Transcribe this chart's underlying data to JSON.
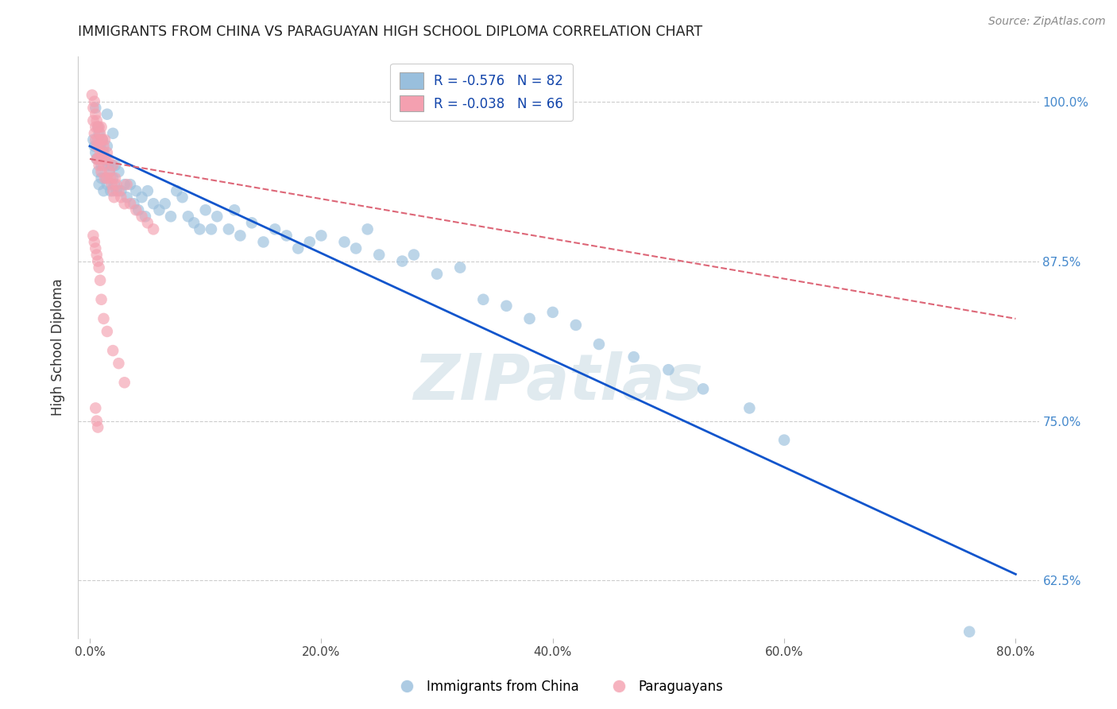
{
  "title": "IMMIGRANTS FROM CHINA VS PARAGUAYAN HIGH SCHOOL DIPLOMA CORRELATION CHART",
  "source": "Source: ZipAtlas.com",
  "xlabel_vals": [
    0.0,
    20.0,
    40.0,
    60.0,
    80.0
  ],
  "ylabel_vals": [
    62.5,
    75.0,
    87.5,
    100.0
  ],
  "xlim": [
    -1.0,
    82.0
  ],
  "ylim": [
    58.0,
    103.5
  ],
  "ylabel": "High School Diploma",
  "legend_blue_label": "Immigrants from China",
  "legend_pink_label": "Paraguayans",
  "blue_R": "-0.576",
  "blue_N": "82",
  "pink_R": "-0.038",
  "pink_N": "66",
  "watermark": "ZIPatlas",
  "blue_color": "#99bfdd",
  "pink_color": "#f4a0b0",
  "blue_line_color": "#1155cc",
  "pink_line_color": "#dd6677",
  "blue_line_x0": 0.0,
  "blue_line_y0": 96.5,
  "blue_line_x1": 80.0,
  "blue_line_y1": 63.0,
  "pink_line_x0": 0.0,
  "pink_line_y0": 95.5,
  "pink_line_x1": 80.0,
  "pink_line_y1": 83.0,
  "blue_scatter_x": [
    0.3,
    0.4,
    0.5,
    0.5,
    0.6,
    0.7,
    0.7,
    0.8,
    0.8,
    0.9,
    1.0,
    1.0,
    1.1,
    1.2,
    1.2,
    1.3,
    1.4,
    1.5,
    1.5,
    1.6,
    1.7,
    1.8,
    1.9,
    2.0,
    2.0,
    2.1,
    2.2,
    2.3,
    2.5,
    2.7,
    3.0,
    3.2,
    3.5,
    3.8,
    4.0,
    4.2,
    4.5,
    4.8,
    5.0,
    5.5,
    6.0,
    6.5,
    7.0,
    7.5,
    8.0,
    8.5,
    9.0,
    9.5,
    10.0,
    10.5,
    11.0,
    12.0,
    12.5,
    13.0,
    14.0,
    15.0,
    16.0,
    17.0,
    18.0,
    19.0,
    20.0,
    22.0,
    23.0,
    24.0,
    25.0,
    27.0,
    28.0,
    30.0,
    32.0,
    34.0,
    36.0,
    38.0,
    40.0,
    42.0,
    44.0,
    47.0,
    50.0,
    53.0,
    57.0,
    60.0,
    76.0,
    1.5
  ],
  "blue_scatter_y": [
    97.0,
    96.5,
    99.5,
    96.0,
    95.5,
    98.0,
    94.5,
    97.5,
    93.5,
    96.5,
    95.0,
    94.0,
    97.0,
    96.0,
    93.0,
    95.5,
    94.0,
    96.5,
    93.5,
    95.0,
    94.5,
    93.0,
    95.0,
    97.5,
    94.0,
    93.5,
    95.0,
    93.0,
    94.5,
    93.0,
    93.5,
    92.5,
    93.5,
    92.0,
    93.0,
    91.5,
    92.5,
    91.0,
    93.0,
    92.0,
    91.5,
    92.0,
    91.0,
    93.0,
    92.5,
    91.0,
    90.5,
    90.0,
    91.5,
    90.0,
    91.0,
    90.0,
    91.5,
    89.5,
    90.5,
    89.0,
    90.0,
    89.5,
    88.5,
    89.0,
    89.5,
    89.0,
    88.5,
    90.0,
    88.0,
    87.5,
    88.0,
    86.5,
    87.0,
    84.5,
    84.0,
    83.0,
    83.5,
    82.5,
    81.0,
    80.0,
    79.0,
    77.5,
    76.0,
    73.5,
    58.5,
    99.0
  ],
  "pink_scatter_x": [
    0.2,
    0.3,
    0.3,
    0.4,
    0.4,
    0.5,
    0.5,
    0.5,
    0.6,
    0.6,
    0.6,
    0.7,
    0.7,
    0.7,
    0.8,
    0.8,
    0.8,
    0.9,
    0.9,
    1.0,
    1.0,
    1.0,
    1.0,
    1.1,
    1.1,
    1.2,
    1.2,
    1.3,
    1.3,
    1.4,
    1.5,
    1.5,
    1.6,
    1.7,
    1.8,
    1.9,
    2.0,
    2.0,
    2.1,
    2.2,
    2.3,
    2.5,
    2.7,
    3.0,
    3.2,
    3.5,
    4.0,
    4.5,
    5.0,
    5.5,
    0.3,
    0.4,
    0.5,
    0.6,
    0.7,
    0.8,
    0.9,
    1.0,
    1.2,
    1.5,
    2.0,
    2.5,
    3.0,
    0.5,
    0.6,
    0.7
  ],
  "pink_scatter_y": [
    100.5,
    99.5,
    98.5,
    100.0,
    97.5,
    99.0,
    98.0,
    97.0,
    98.5,
    96.5,
    95.5,
    98.0,
    97.0,
    95.5,
    98.0,
    96.5,
    95.0,
    97.5,
    96.0,
    98.0,
    97.0,
    95.5,
    94.5,
    97.0,
    96.0,
    96.5,
    95.0,
    97.0,
    94.0,
    95.5,
    96.0,
    94.0,
    95.5,
    94.5,
    94.0,
    93.5,
    95.0,
    93.0,
    92.5,
    94.0,
    93.5,
    93.0,
    92.5,
    92.0,
    93.5,
    92.0,
    91.5,
    91.0,
    90.5,
    90.0,
    89.5,
    89.0,
    88.5,
    88.0,
    87.5,
    87.0,
    86.0,
    84.5,
    83.0,
    82.0,
    80.5,
    79.5,
    78.0,
    76.0,
    75.0,
    74.5
  ],
  "background_color": "#ffffff",
  "grid_color": "#cccccc",
  "title_color": "#222222",
  "axis_label_color": "#333333",
  "tick_label_color_right": "#4488cc",
  "watermark_color": "#99bbcc",
  "watermark_alpha": 0.3
}
